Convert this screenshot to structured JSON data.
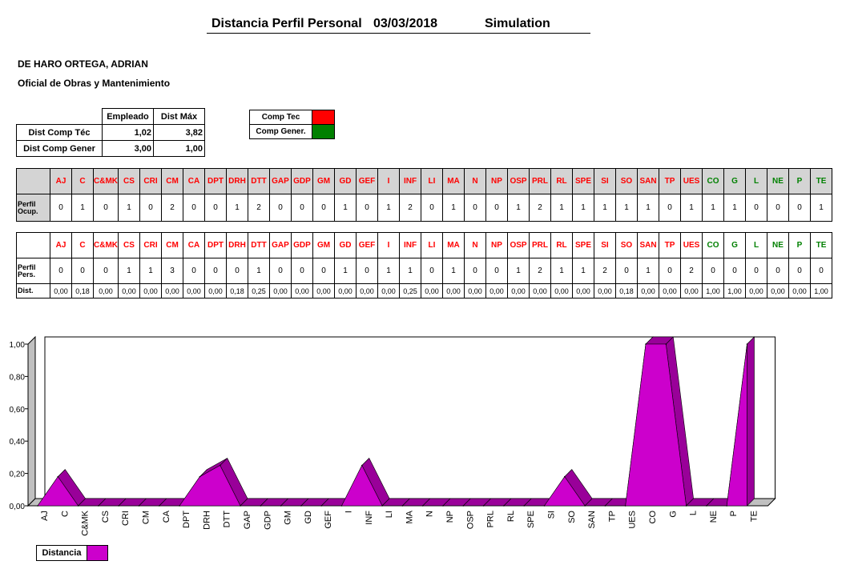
{
  "header": {
    "title": "Distancia Perfil Personal",
    "date": "03/03/2018",
    "mode": "Simulation"
  },
  "employee": {
    "name": "DE HARO ORTEGA, ADRIAN",
    "role": "Oficial de Obras y Mantenimiento"
  },
  "summary": {
    "col_empleado": "Empleado",
    "col_dist_max": "Dist Máx",
    "rows": [
      {
        "label": "Dist Comp Téc",
        "empleado": "1,02",
        "dist_max": "3,82"
      },
      {
        "label": "Dist Comp  Gener",
        "empleado": "3,00",
        "dist_max": "1,00"
      }
    ]
  },
  "legend": {
    "items": [
      {
        "label": "Comp Tec",
        "color": "#ff0000"
      },
      {
        "label": "Comp Gener.",
        "color": "#008000"
      }
    ]
  },
  "competencies": [
    {
      "code": "AJ",
      "type": "tec"
    },
    {
      "code": "C",
      "type": "tec"
    },
    {
      "code": "C&MK",
      "type": "tec"
    },
    {
      "code": "CS",
      "type": "tec"
    },
    {
      "code": "CRI",
      "type": "tec"
    },
    {
      "code": "CM",
      "type": "tec"
    },
    {
      "code": "CA",
      "type": "tec"
    },
    {
      "code": "DPT",
      "type": "tec"
    },
    {
      "code": "DRH",
      "type": "tec"
    },
    {
      "code": "DTT",
      "type": "tec"
    },
    {
      "code": "GAP",
      "type": "tec"
    },
    {
      "code": "GDP",
      "type": "tec"
    },
    {
      "code": "GM",
      "type": "tec"
    },
    {
      "code": "GD",
      "type": "tec"
    },
    {
      "code": "GEF",
      "type": "tec"
    },
    {
      "code": "I",
      "type": "tec"
    },
    {
      "code": "INF",
      "type": "tec"
    },
    {
      "code": "LI",
      "type": "tec"
    },
    {
      "code": "MA",
      "type": "tec"
    },
    {
      "code": "N",
      "type": "tec"
    },
    {
      "code": "NP",
      "type": "tec"
    },
    {
      "code": "OSP",
      "type": "tec"
    },
    {
      "code": "PRL",
      "type": "tec"
    },
    {
      "code": "RL",
      "type": "tec"
    },
    {
      "code": "SPE",
      "type": "tec"
    },
    {
      "code": "SI",
      "type": "tec"
    },
    {
      "code": "SO",
      "type": "tec"
    },
    {
      "code": "SAN",
      "type": "tec"
    },
    {
      "code": "TP",
      "type": "tec"
    },
    {
      "code": "UES",
      "type": "tec"
    },
    {
      "code": "CO",
      "type": "gen"
    },
    {
      "code": "G",
      "type": "gen"
    },
    {
      "code": "L",
      "type": "gen"
    },
    {
      "code": "NE",
      "type": "gen"
    },
    {
      "code": "P",
      "type": "gen"
    },
    {
      "code": "TE",
      "type": "gen"
    }
  ],
  "perfil_ocup": {
    "label_line1": "Perfil",
    "label_line2": "Ocup.",
    "values": [
      "0",
      "1",
      "0",
      "1",
      "0",
      "2",
      "0",
      "0",
      "1",
      "2",
      "0",
      "0",
      "0",
      "1",
      "0",
      "1",
      "2",
      "0",
      "1",
      "0",
      "0",
      "1",
      "2",
      "1",
      "1",
      "1",
      "1",
      "1",
      "0",
      "1",
      "1",
      "1",
      "0",
      "0",
      "0",
      "1"
    ]
  },
  "perfil_pers": {
    "label_line1": "Perfil",
    "label_line2": "Pers.",
    "values": [
      "0",
      "0",
      "0",
      "1",
      "1",
      "3",
      "0",
      "0",
      "0",
      "1",
      "0",
      "0",
      "0",
      "1",
      "0",
      "1",
      "1",
      "0",
      "1",
      "0",
      "0",
      "1",
      "2",
      "1",
      "1",
      "2",
      "0",
      "1",
      "0",
      "2",
      "0",
      "0",
      "0",
      "0",
      "0",
      "0"
    ]
  },
  "dist_row": {
    "label": "Dist.",
    "values": [
      "0,00",
      "0,18",
      "0,00",
      "0,00",
      "0,00",
      "0,00",
      "0,00",
      "0,00",
      "0,18",
      "0,25",
      "0,00",
      "0,00",
      "0,00",
      "0,00",
      "0,00",
      "0,00",
      "0,25",
      "0,00",
      "0,00",
      "0,00",
      "0,00",
      "0,00",
      "0,00",
      "0,00",
      "0,00",
      "0,00",
      "0,18",
      "0,00",
      "0,00",
      "0,00",
      "1,00",
      "1,00",
      "0,00",
      "0,00",
      "0,00",
      "1,00"
    ]
  },
  "chart_data": {
    "type": "area",
    "categories": [
      "AJ",
      "C",
      "C&MK",
      "CS",
      "CRI",
      "CM",
      "CA",
      "DPT",
      "DRH",
      "DTT",
      "GAP",
      "GDP",
      "GM",
      "GD",
      "GEF",
      "I",
      "INF",
      "LI",
      "MA",
      "N",
      "NP",
      "OSP",
      "PRL",
      "RL",
      "SPE",
      "SI",
      "SO",
      "SAN",
      "TP",
      "UES",
      "CO",
      "G",
      "L",
      "NE",
      "P",
      "TE"
    ],
    "series": [
      {
        "name": "Distancia",
        "values": [
          0,
          0.18,
          0,
          0,
          0,
          0,
          0,
          0,
          0.18,
          0.25,
          0,
          0,
          0,
          0,
          0,
          0,
          0.25,
          0,
          0,
          0,
          0,
          0,
          0,
          0,
          0,
          0,
          0.18,
          0,
          0,
          0,
          1,
          1,
          0,
          0,
          0,
          1
        ],
        "color": "#cc00cc"
      }
    ],
    "yticks": [
      "0,00",
      "0,20",
      "0,40",
      "0,60",
      "0,80",
      "1,00"
    ],
    "ylim": [
      0,
      1
    ],
    "legend": "bottom-left",
    "style": "3d"
  }
}
